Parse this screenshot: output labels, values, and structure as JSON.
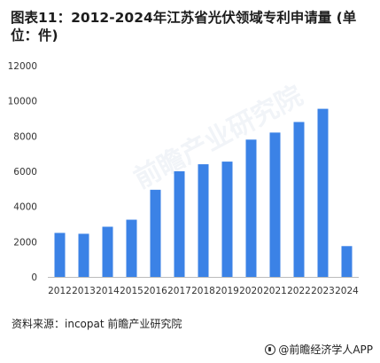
{
  "title": "图表11：2012-2024年江苏省光伏领域专利申请量 (单位：件)",
  "source": "资料来源：incopat 前瞻产业研究院",
  "footer": {
    "brand": "@前瞻经济学人APP",
    "icon": "qianzhan-logo-icon"
  },
  "watermark": "前瞻产业研究院",
  "colors": {
    "bar": "#3b82e6",
    "axis": "#bbbbbb",
    "text": "#333333"
  },
  "chart_data": {
    "type": "bar",
    "title": "图表11：2012-2024年江苏省光伏领域专利申请量 (单位：件)",
    "xlabel": "",
    "ylabel": "",
    "ylim": [
      0,
      12000
    ],
    "yticks": [
      0,
      2000,
      4000,
      6000,
      8000,
      10000,
      12000
    ],
    "ytick_labels": [
      "0",
      "2000",
      "4000",
      "6000",
      "8000",
      "10000",
      "12000"
    ],
    "grid": false,
    "categories": [
      "2012",
      "2013",
      "2014",
      "2015",
      "2016",
      "2017",
      "2018",
      "2019",
      "2020",
      "2021",
      "2022",
      "2023",
      "2024"
    ],
    "values": [
      2500,
      2450,
      2850,
      3250,
      4950,
      6000,
      6400,
      6550,
      7800,
      8200,
      8800,
      9550,
      1750
    ]
  }
}
